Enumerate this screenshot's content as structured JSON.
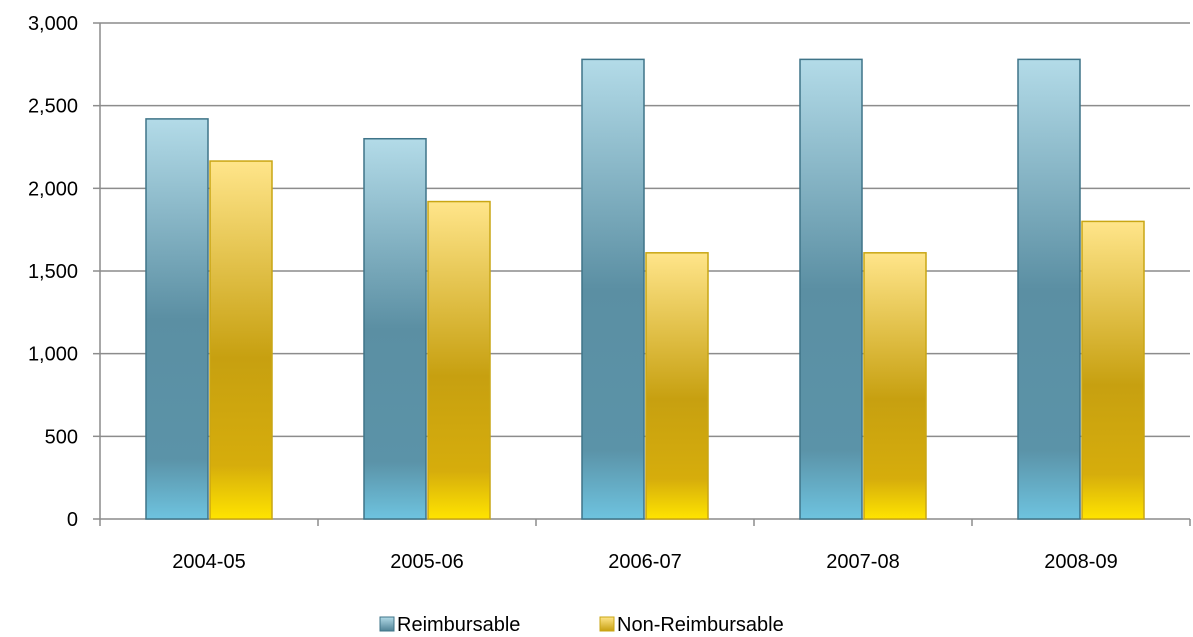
{
  "chart_data": {
    "type": "bar",
    "categories": [
      "2004-05",
      "2005-06",
      "2006-07",
      "2007-08",
      "2008-09"
    ],
    "series": [
      {
        "name": "Reimbursable",
        "values": [
          2420,
          2300,
          2780,
          2780,
          2780
        ],
        "color": "#5b8fa3"
      },
      {
        "name": "Non-Reimbursable",
        "values": [
          2165,
          1920,
          1610,
          1610,
          1800
        ],
        "color": "#d4a817"
      }
    ],
    "ylim": [
      0,
      3000
    ],
    "yticks": [
      0,
      500,
      1000,
      1500,
      2000,
      2500,
      3000
    ],
    "ytick_labels": [
      "0",
      "500",
      "1,000",
      "1,500",
      "2,000",
      "2,500",
      "3,000"
    ],
    "grid": true,
    "legend_position": "bottom",
    "title": "",
    "xlabel": "",
    "ylabel": ""
  }
}
